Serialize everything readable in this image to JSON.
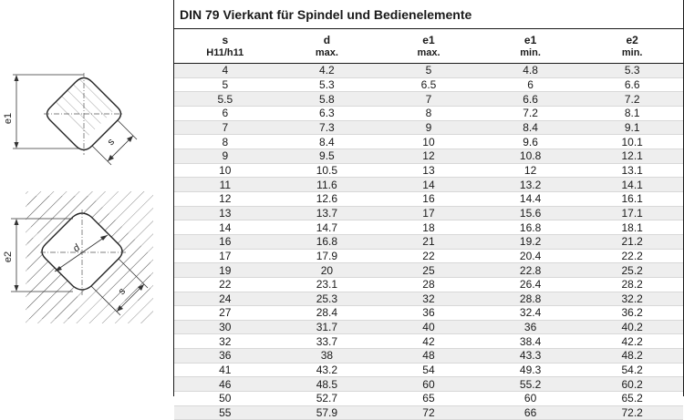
{
  "title": "DIN 79 Vierkant für Spindel und Bedienelemente",
  "columns": [
    {
      "top": "s",
      "sub": "H11/h11"
    },
    {
      "top": "d",
      "sub": "max."
    },
    {
      "top": "e1",
      "sub": "max."
    },
    {
      "top": "e1",
      "sub": "min."
    },
    {
      "top": "e2",
      "sub": "min."
    }
  ],
  "rows": [
    [
      "4",
      "4.2",
      "5",
      "4.8",
      "5.3"
    ],
    [
      "5",
      "5.3",
      "6.5",
      "6",
      "6.6"
    ],
    [
      "5.5",
      "5.8",
      "7",
      "6.6",
      "7.2"
    ],
    [
      "6",
      "6.3",
      "8",
      "7.2",
      "8.1"
    ],
    [
      "7",
      "7.3",
      "9",
      "8.4",
      "9.1"
    ],
    [
      "8",
      "8.4",
      "10",
      "9.6",
      "10.1"
    ],
    [
      "9",
      "9.5",
      "12",
      "10.8",
      "12.1"
    ],
    [
      "10",
      "10.5",
      "13",
      "12",
      "13.1"
    ],
    [
      "11",
      "11.6",
      "14",
      "13.2",
      "14.1"
    ],
    [
      "12",
      "12.6",
      "16",
      "14.4",
      "16.1"
    ],
    [
      "13",
      "13.7",
      "17",
      "15.6",
      "17.1"
    ],
    [
      "14",
      "14.7",
      "18",
      "16.8",
      "18.1"
    ],
    [
      "16",
      "16.8",
      "21",
      "19.2",
      "21.2"
    ],
    [
      "17",
      "17.9",
      "22",
      "20.4",
      "22.2"
    ],
    [
      "19",
      "20",
      "25",
      "22.8",
      "25.2"
    ],
    [
      "22",
      "23.1",
      "28",
      "26.4",
      "28.2"
    ],
    [
      "24",
      "25.3",
      "32",
      "28.8",
      "32.2"
    ],
    [
      "27",
      "28.4",
      "36",
      "32.4",
      "36.2"
    ],
    [
      "30",
      "31.7",
      "40",
      "36",
      "40.2"
    ],
    [
      "32",
      "33.7",
      "42",
      "38.4",
      "42.2"
    ],
    [
      "36",
      "38",
      "48",
      "43.3",
      "48.2"
    ],
    [
      "41",
      "43.2",
      "54",
      "49.3",
      "54.2"
    ],
    [
      "46",
      "48.5",
      "60",
      "55.2",
      "60.2"
    ],
    [
      "50",
      "52.7",
      "65",
      "60",
      "65.2"
    ],
    [
      "55",
      "57.9",
      "72",
      "66",
      "72.2"
    ]
  ],
  "drawing_labels": {
    "top_e": "e1",
    "top_s": "s",
    "bottom_e": "e2",
    "bottom_d": "d",
    "bottom_s": "s"
  }
}
